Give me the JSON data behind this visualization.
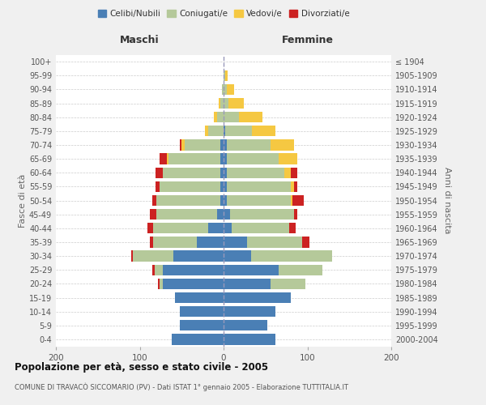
{
  "age_groups": [
    "0-4",
    "5-9",
    "10-14",
    "15-19",
    "20-24",
    "25-29",
    "30-34",
    "35-39",
    "40-44",
    "45-49",
    "50-54",
    "55-59",
    "60-64",
    "65-69",
    "70-74",
    "75-79",
    "80-84",
    "85-89",
    "90-94",
    "95-99",
    "100+"
  ],
  "birth_years": [
    "2000-2004",
    "1995-1999",
    "1990-1994",
    "1985-1989",
    "1980-1984",
    "1975-1979",
    "1970-1974",
    "1965-1969",
    "1960-1964",
    "1955-1959",
    "1950-1954",
    "1945-1949",
    "1940-1944",
    "1935-1939",
    "1930-1934",
    "1925-1929",
    "1920-1924",
    "1915-1919",
    "1910-1914",
    "1905-1909",
    "≤ 1904"
  ],
  "maschi_celibi": [
    62,
    52,
    52,
    58,
    72,
    72,
    60,
    32,
    18,
    8,
    4,
    4,
    4,
    4,
    4,
    0,
    0,
    0,
    0,
    0,
    0
  ],
  "maschi_coniugati": [
    0,
    0,
    0,
    0,
    4,
    10,
    48,
    52,
    66,
    72,
    76,
    72,
    68,
    62,
    42,
    18,
    8,
    4,
    2,
    0,
    0
  ],
  "maschi_vedovi": [
    0,
    0,
    0,
    0,
    0,
    0,
    0,
    0,
    0,
    0,
    0,
    0,
    0,
    2,
    4,
    4,
    4,
    2,
    0,
    0,
    0
  ],
  "maschi_divorziati": [
    0,
    0,
    0,
    0,
    2,
    3,
    2,
    4,
    7,
    8,
    5,
    5,
    9,
    8,
    2,
    0,
    0,
    0,
    0,
    0,
    0
  ],
  "femmine_nubili": [
    62,
    52,
    62,
    80,
    56,
    66,
    33,
    28,
    10,
    8,
    4,
    4,
    4,
    4,
    4,
    2,
    0,
    0,
    0,
    0,
    0
  ],
  "femmine_coniugate": [
    0,
    0,
    0,
    0,
    42,
    52,
    96,
    66,
    68,
    76,
    76,
    76,
    68,
    62,
    52,
    32,
    18,
    6,
    4,
    2,
    0
  ],
  "femmine_vedove": [
    0,
    0,
    0,
    0,
    0,
    0,
    0,
    0,
    0,
    0,
    2,
    4,
    8,
    22,
    28,
    28,
    28,
    18,
    9,
    3,
    0
  ],
  "femmine_divorziate": [
    0,
    0,
    0,
    0,
    0,
    0,
    0,
    8,
    8,
    4,
    14,
    4,
    8,
    0,
    0,
    0,
    0,
    0,
    0,
    0,
    0
  ],
  "colors": {
    "celibi": "#4a7fb5",
    "coniugati": "#b5c99a",
    "vedovi": "#f5c842",
    "divorziati": "#cc2222"
  },
  "title": "Popolazione per età, sesso e stato civile - 2005",
  "subtitle": "COMUNE DI TRAVACÒ SICCOMARIO (PV) - Dati ISTAT 1° gennaio 2005 - Elaborazione TUTTITALIA.IT",
  "label_maschi": "Maschi",
  "label_femmine": "Femmine",
  "ylabel_left": "Fasce di età",
  "ylabel_right": "Anni di nascita",
  "xlim": 200,
  "bg_color": "#f0f0f0",
  "plot_bg_color": "#ffffff",
  "grid_color": "#cccccc",
  "legend": [
    "Celibi/Nubili",
    "Coniugati/e",
    "Vedovi/e",
    "Divorziati/e"
  ]
}
